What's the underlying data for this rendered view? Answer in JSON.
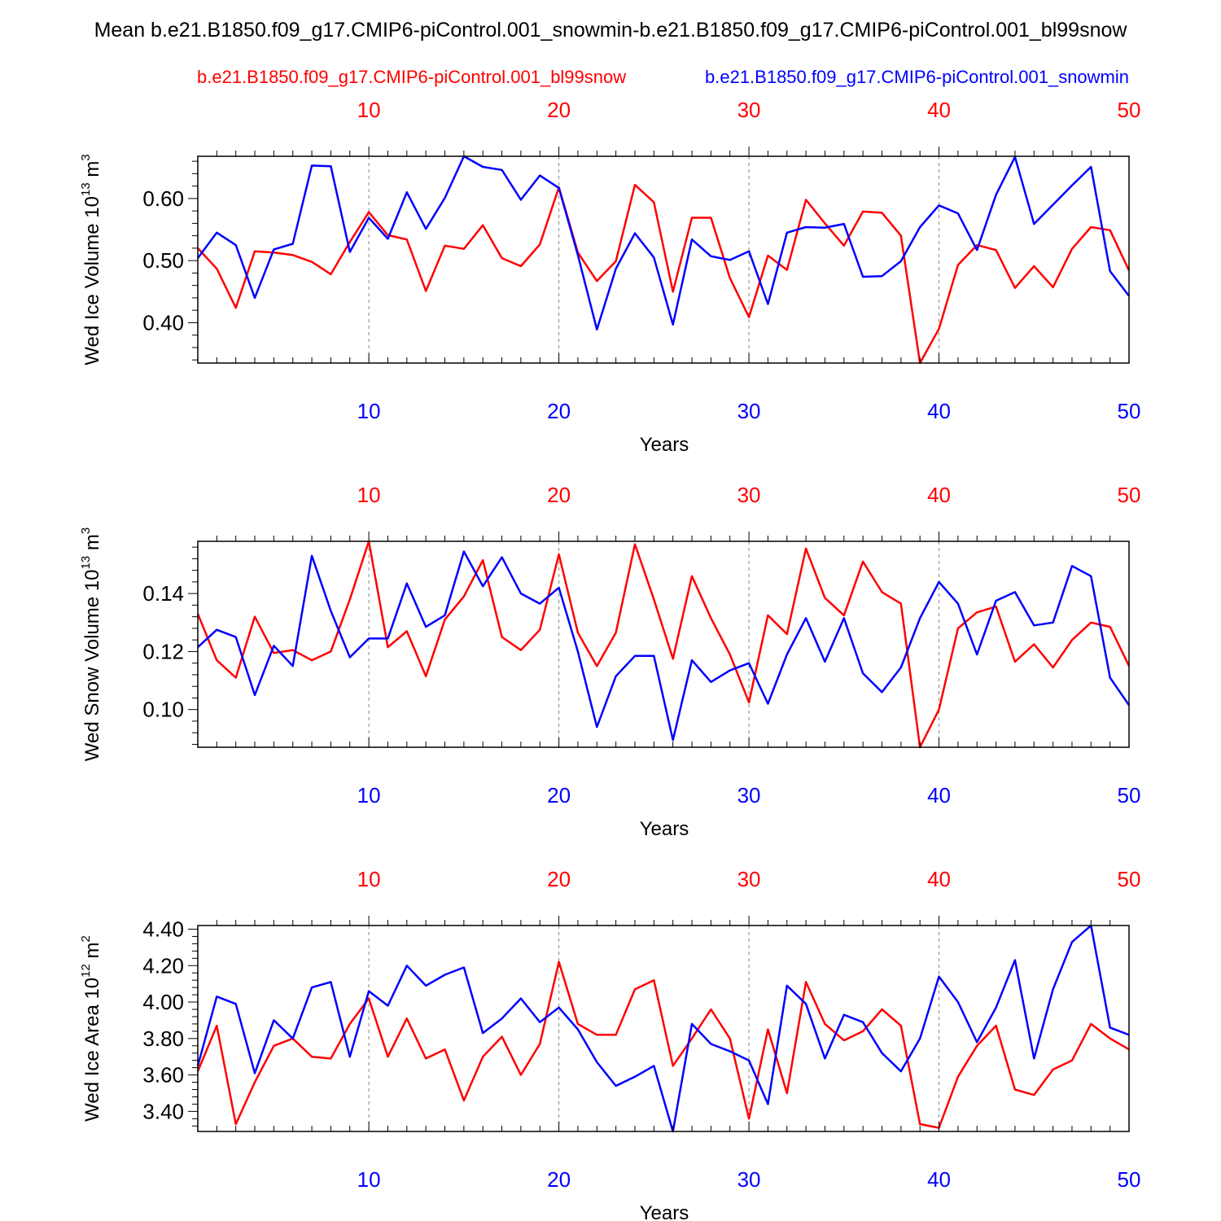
{
  "figure": {
    "title": "Mean b.e21.B1850.f09_g17.CMIP6-piControl.001_snowmin-b.e21.B1850.f09_g17.CMIP6-piControl.001_bl99snow",
    "legend": {
      "red_label": "b.e21.B1850.f09_g17.CMIP6-piControl.001_bl99snow",
      "blue_label": "b.e21.B1850.f09_g17.CMIP6-piControl.001_snowmin"
    },
    "colors": {
      "red": "#ff0000",
      "blue": "#0000ff",
      "axis": "#000000",
      "grid": "#888888"
    }
  },
  "chart_data": [
    {
      "type": "line",
      "ylabel": "Wed Ice Volume",
      "yunit": {
        "base": "10",
        "exp": "13",
        "unit": "m",
        "unit_exp": "3"
      },
      "xlabel": "Years",
      "xlim": [
        1,
        50
      ],
      "ylim": [
        0.335,
        0.668
      ],
      "yticks": [
        0.4,
        0.5,
        0.6
      ],
      "ytick_labels": [
        "0.40",
        "0.50",
        "0.60"
      ],
      "xticks": [
        10,
        20,
        30,
        40,
        50
      ],
      "xtick_labels": [
        "10",
        "20",
        "30",
        "40",
        "50"
      ],
      "x": [
        1,
        2,
        3,
        4,
        5,
        6,
        7,
        8,
        9,
        10,
        11,
        12,
        13,
        14,
        15,
        16,
        17,
        18,
        19,
        20,
        21,
        22,
        23,
        24,
        25,
        26,
        27,
        28,
        29,
        30,
        31,
        32,
        33,
        34,
        35,
        36,
        37,
        38,
        39,
        40,
        41,
        42,
        43,
        44,
        45,
        46,
        47,
        48,
        49,
        50
      ],
      "series": [
        {
          "color": "red",
          "values": [
            0.52,
            0.487,
            0.424,
            0.515,
            0.513,
            0.509,
            0.498,
            0.478,
            0.53,
            0.578,
            0.541,
            0.534,
            0.451,
            0.524,
            0.519,
            0.557,
            0.504,
            0.491,
            0.526,
            0.618,
            0.513,
            0.467,
            0.499,
            0.622,
            0.594,
            0.45,
            0.569,
            0.569,
            0.472,
            0.409,
            0.508,
            0.485,
            0.598,
            0.56,
            0.524,
            0.579,
            0.577,
            0.54,
            0.335,
            0.39,
            0.493,
            0.525,
            0.517,
            0.456,
            0.491,
            0.457,
            0.519,
            0.554,
            0.549,
            0.484
          ]
        },
        {
          "color": "blue",
          "values": [
            0.504,
            0.545,
            0.525,
            0.44,
            0.518,
            0.527,
            0.653,
            0.652,
            0.514,
            0.569,
            0.535,
            0.61,
            0.551,
            0.601,
            0.668,
            0.651,
            0.646,
            0.598,
            0.637,
            0.617,
            0.509,
            0.389,
            0.487,
            0.544,
            0.505,
            0.397,
            0.534,
            0.507,
            0.501,
            0.515,
            0.43,
            0.545,
            0.554,
            0.553,
            0.559,
            0.474,
            0.475,
            0.499,
            0.554,
            0.589,
            0.576,
            0.517,
            0.606,
            0.667,
            0.559,
            0.59,
            0.621,
            0.651,
            0.483,
            0.443
          ]
        }
      ]
    },
    {
      "type": "line",
      "ylabel": "Wed Snow Volume",
      "yunit": {
        "base": "10",
        "exp": "13",
        "unit": "m",
        "unit_exp": "3"
      },
      "xlabel": "Years",
      "xlim": [
        1,
        50
      ],
      "ylim": [
        0.087,
        0.158
      ],
      "yticks": [
        0.1,
        0.12,
        0.14
      ],
      "ytick_labels": [
        "0.10",
        "0.12",
        "0.14"
      ],
      "xticks": [
        10,
        20,
        30,
        40,
        50
      ],
      "xtick_labels": [
        "10",
        "20",
        "30",
        "40",
        "50"
      ],
      "x": [
        1,
        2,
        3,
        4,
        5,
        6,
        7,
        8,
        9,
        10,
        11,
        12,
        13,
        14,
        15,
        16,
        17,
        18,
        19,
        20,
        21,
        22,
        23,
        24,
        25,
        26,
        27,
        28,
        29,
        30,
        31,
        32,
        33,
        34,
        35,
        36,
        37,
        38,
        39,
        40,
        41,
        42,
        43,
        44,
        45,
        46,
        47,
        48,
        49,
        50
      ],
      "series": [
        {
          "color": "red",
          "values": [
            0.133,
            0.117,
            0.111,
            0.132,
            0.1195,
            0.1205,
            0.117,
            0.12,
            0.138,
            0.158,
            0.1215,
            0.127,
            0.1115,
            0.131,
            0.139,
            0.1515,
            0.125,
            0.1205,
            0.1275,
            0.1535,
            0.1265,
            0.115,
            0.1265,
            0.157,
            0.138,
            0.1175,
            0.146,
            0.1315,
            0.119,
            0.1025,
            0.1325,
            0.126,
            0.1555,
            0.1385,
            0.1325,
            0.151,
            0.1405,
            0.1365,
            0.087,
            0.1,
            0.128,
            0.1335,
            0.1355,
            0.1165,
            0.1225,
            0.1145,
            0.124,
            0.13,
            0.1285,
            0.115
          ]
        },
        {
          "color": "blue",
          "values": [
            0.1215,
            0.1275,
            0.125,
            0.105,
            0.122,
            0.115,
            0.153,
            0.134,
            0.118,
            0.1245,
            0.1245,
            0.1435,
            0.1285,
            0.1325,
            0.1545,
            0.1425,
            0.1525,
            0.14,
            0.1365,
            0.142,
            0.12,
            0.094,
            0.1115,
            0.1185,
            0.1185,
            0.0895,
            0.117,
            0.1095,
            0.1135,
            0.116,
            0.102,
            0.119,
            0.1315,
            0.1165,
            0.1315,
            0.1125,
            0.106,
            0.1145,
            0.1315,
            0.144,
            0.1365,
            0.119,
            0.1375,
            0.1405,
            0.129,
            0.13,
            0.1495,
            0.146,
            0.111,
            0.1015
          ]
        }
      ]
    },
    {
      "type": "line",
      "ylabel": "Wed Ice Area",
      "yunit": {
        "base": "10",
        "exp": "12",
        "unit": "m",
        "unit_exp": "2"
      },
      "xlabel": "Years",
      "xlim": [
        1,
        50
      ],
      "ylim": [
        3.29,
        4.42
      ],
      "yticks": [
        3.4,
        3.6,
        3.8,
        4.0,
        4.2,
        4.4
      ],
      "ytick_labels": [
        "3.40",
        "3.60",
        "3.80",
        "4.00",
        "4.20",
        "4.40"
      ],
      "xticks": [
        10,
        20,
        30,
        40,
        50
      ],
      "xtick_labels": [
        "10",
        "20",
        "30",
        "40",
        "50"
      ],
      "x": [
        1,
        2,
        3,
        4,
        5,
        6,
        7,
        8,
        9,
        10,
        11,
        12,
        13,
        14,
        15,
        16,
        17,
        18,
        19,
        20,
        21,
        22,
        23,
        24,
        25,
        26,
        27,
        28,
        29,
        30,
        31,
        32,
        33,
        34,
        35,
        36,
        37,
        38,
        39,
        40,
        41,
        42,
        43,
        44,
        45,
        46,
        47,
        48,
        49,
        50
      ],
      "series": [
        {
          "color": "red",
          "values": [
            3.62,
            3.87,
            3.33,
            3.56,
            3.76,
            3.8,
            3.7,
            3.69,
            3.88,
            4.02,
            3.7,
            3.91,
            3.69,
            3.74,
            3.46,
            3.7,
            3.81,
            3.6,
            3.77,
            4.22,
            3.88,
            3.82,
            3.82,
            4.07,
            4.12,
            3.65,
            3.8,
            3.96,
            3.8,
            3.36,
            3.85,
            3.5,
            4.11,
            3.88,
            3.79,
            3.84,
            3.96,
            3.87,
            3.33,
            3.31,
            3.59,
            3.76,
            3.87,
            3.52,
            3.49,
            3.63,
            3.68,
            3.88,
            3.8,
            3.74
          ]
        },
        {
          "color": "blue",
          "values": [
            3.65,
            4.03,
            3.99,
            3.61,
            3.9,
            3.8,
            4.08,
            4.11,
            3.7,
            4.06,
            3.98,
            4.2,
            4.09,
            4.15,
            4.19,
            3.83,
            3.91,
            4.02,
            3.89,
            3.97,
            3.85,
            3.67,
            3.54,
            3.59,
            3.65,
            3.29,
            3.88,
            3.77,
            3.73,
            3.68,
            3.44,
            4.09,
            3.99,
            3.69,
            3.93,
            3.89,
            3.72,
            3.62,
            3.8,
            4.14,
            4.0,
            3.78,
            3.97,
            4.23,
            3.69,
            4.07,
            4.33,
            4.42,
            3.86,
            3.82
          ]
        }
      ]
    }
  ]
}
